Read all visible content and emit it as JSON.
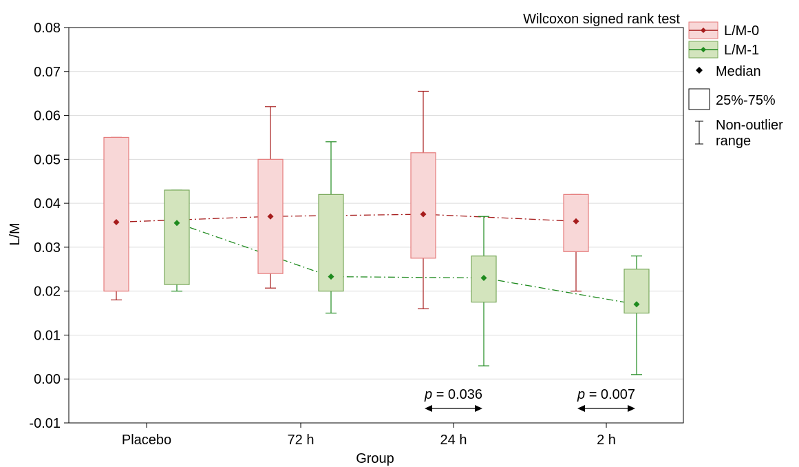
{
  "chart_data": {
    "type": "box",
    "title": "Wilcoxon signed rank test",
    "xlabel": "Group",
    "ylabel": "L/M",
    "ylim": [
      -0.01,
      0.08
    ],
    "yticks": [
      -0.01,
      0.0,
      0.01,
      0.02,
      0.03,
      0.04,
      0.05,
      0.06,
      0.07,
      0.08
    ],
    "ytick_labels": [
      "-0.01",
      "0.00",
      "0.01",
      "0.02",
      "0.03",
      "0.04",
      "0.05",
      "0.06",
      "0.07",
      "0.08"
    ],
    "categories": [
      "Placebo",
      "72 h",
      "24 h",
      "2 h"
    ],
    "grid": true,
    "legend_position": "right",
    "series": [
      {
        "name": "L/M-0",
        "color": "#a61c1c",
        "fill": "#f8d7d7",
        "box_edge": "#e57b7b",
        "median": [
          0.0357,
          0.037,
          0.0375,
          0.0359
        ],
        "q1": [
          0.02,
          0.024,
          0.0275,
          0.029
        ],
        "q3": [
          0.055,
          0.05,
          0.0515,
          0.042
        ],
        "whisker_low": [
          0.018,
          0.0207,
          0.016,
          0.02
        ],
        "whisker_high": [
          0.055,
          0.062,
          0.0655,
          0.042
        ]
      },
      {
        "name": "L/M-1",
        "color": "#1e8a1e",
        "fill": "#d3e4bd",
        "box_edge": "#79a85a",
        "median": [
          0.0355,
          0.0233,
          0.023,
          0.017
        ],
        "q1": [
          0.0215,
          0.02,
          0.0175,
          0.015
        ],
        "q3": [
          0.043,
          0.042,
          0.028,
          0.025
        ],
        "whisker_low": [
          0.02,
          0.015,
          0.003,
          0.001
        ],
        "whisker_high": [
          0.043,
          0.054,
          0.037,
          0.028
        ]
      }
    ],
    "legend": {
      "median_label": "Median",
      "box_label": "25%-75%",
      "range_label_line1": "Non-outlier",
      "range_label_line2": "range"
    },
    "annotations": [
      {
        "category_index": 2,
        "italic": "p",
        "text": " = 0.036"
      },
      {
        "category_index": 3,
        "italic": "p",
        "text": " = 0.007"
      }
    ]
  }
}
